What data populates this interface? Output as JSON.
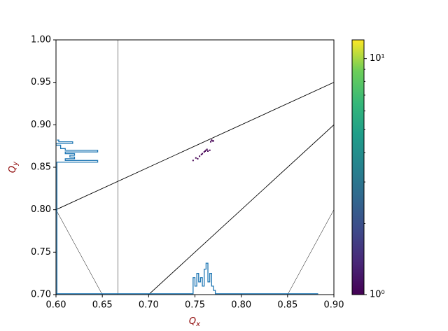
{
  "chart_data": {
    "type": "tune-diagram",
    "xlabel": {
      "symbol": "Q",
      "subscript": "x"
    },
    "ylabel": {
      "symbol": "Q",
      "subscript": "y"
    },
    "label_color": "#8b0000",
    "xlim": [
      0.6,
      0.9
    ],
    "xticks": [
      {
        "value": 0.6,
        "label": "0.60"
      },
      {
        "value": 0.65,
        "label": "0.65"
      },
      {
        "value": 0.7,
        "label": "0.70"
      },
      {
        "value": 0.75,
        "label": "0.75"
      },
      {
        "value": 0.8,
        "label": "0.80"
      },
      {
        "value": 0.85,
        "label": "0.85"
      },
      {
        "value": 0.9,
        "label": "0.90"
      }
    ],
    "ylim": [
      0.7,
      1.0
    ],
    "yticks": [
      {
        "value": 0.7,
        "label": "0.70"
      },
      {
        "value": 0.75,
        "label": "0.75"
      },
      {
        "value": 0.8,
        "label": "0.80"
      },
      {
        "value": 0.85,
        "label": "0.85"
      },
      {
        "value": 0.9,
        "label": "0.90"
      },
      {
        "value": 0.95,
        "label": "0.95"
      },
      {
        "value": 1.0,
        "label": "1.00"
      }
    ],
    "resonance_lines": [
      {
        "x": [
          0.6667,
          0.6667
        ],
        "y": [
          0.7,
          1.0
        ],
        "width": 0.5
      },
      {
        "x": [
          0.6,
          0.9
        ],
        "y": [
          0.8,
          0.95
        ],
        "width": 0.9
      },
      {
        "x": [
          0.7,
          0.9
        ],
        "y": [
          0.7,
          0.9
        ],
        "width": 0.9
      },
      {
        "x": [
          0.6,
          0.65
        ],
        "y": [
          0.8,
          0.7
        ],
        "width": 0.5
      },
      {
        "x": [
          0.85,
          0.9
        ],
        "y": [
          0.7,
          0.8
        ],
        "width": 0.5
      }
    ],
    "scatter": {
      "color": "#440154",
      "x": [
        0.748,
        0.751,
        0.753,
        0.755,
        0.757,
        0.758,
        0.76,
        0.761,
        0.762,
        0.763,
        0.764,
        0.766,
        0.767,
        0.768,
        0.769,
        0.77
      ],
      "y": [
        0.858,
        0.861,
        0.86,
        0.863,
        0.865,
        0.866,
        0.868,
        0.869,
        0.87,
        0.871,
        0.869,
        0.87,
        0.88,
        0.882,
        0.881,
        0.881
      ]
    },
    "histograms": [
      {
        "color": "#1f77b4",
        "x": [
          0.6,
          0.748,
          0.748,
          0.75,
          0.75,
          0.752,
          0.752,
          0.754,
          0.754,
          0.756,
          0.756,
          0.758,
          0.758,
          0.76,
          0.76,
          0.762,
          0.762,
          0.764,
          0.764,
          0.766,
          0.766,
          0.768,
          0.768,
          0.77,
          0.77,
          0.772,
          0.772,
          0.883
        ],
        "y": [
          0.701,
          0.701,
          0.72,
          0.72,
          0.71,
          0.71,
          0.725,
          0.725,
          0.715,
          0.715,
          0.72,
          0.72,
          0.71,
          0.71,
          0.73,
          0.73,
          0.737,
          0.737,
          0.715,
          0.715,
          0.725,
          0.725,
          0.71,
          0.71,
          0.705,
          0.705,
          0.701,
          0.701
        ]
      },
      {
        "color": "#1f77b4",
        "x": [
          0.601,
          0.601,
          0.645,
          0.645,
          0.61,
          0.61,
          0.62,
          0.62,
          0.615,
          0.615,
          0.62,
          0.62,
          0.61,
          0.61,
          0.645,
          0.645,
          0.61,
          0.61,
          0.605,
          0.605,
          0.605,
          0.605,
          0.6,
          0.6,
          0.618,
          0.618,
          0.603,
          0.603,
          0.601
        ],
        "y": [
          0.7,
          0.856,
          0.856,
          0.858,
          0.858,
          0.86,
          0.86,
          0.862,
          0.862,
          0.864,
          0.864,
          0.866,
          0.866,
          0.868,
          0.868,
          0.87,
          0.87,
          0.872,
          0.872,
          0.874,
          0.874,
          0.876,
          0.876,
          0.878,
          0.878,
          0.88,
          0.88,
          0.882,
          0.882
        ]
      }
    ],
    "colorbar": {
      "log_scale": true,
      "lim": [
        1,
        12
      ],
      "ticks": [
        {
          "value": 1,
          "label": "10⁰"
        },
        {
          "value": 10,
          "label": "10¹"
        }
      ],
      "minor_ticks": [
        2,
        3,
        4,
        5,
        6,
        7,
        8,
        9
      ]
    }
  }
}
